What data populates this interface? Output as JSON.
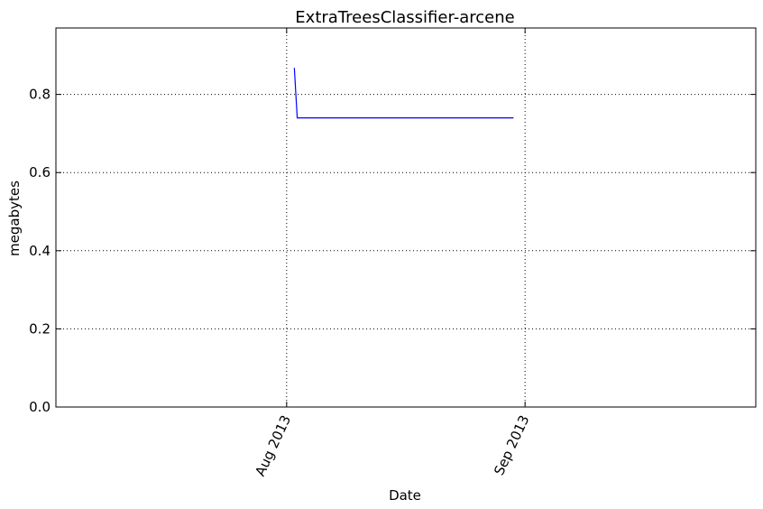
{
  "chart_data": {
    "type": "line",
    "title": "ExtraTreesClassifier-arcene",
    "xlabel": "Date",
    "ylabel": "megabytes",
    "x_axis_type": "date",
    "xlim": [
      "2013-07-02",
      "2013-10-01"
    ],
    "ylim": [
      0,
      0.97
    ],
    "x_ticks": [
      {
        "date": "2013-08-01",
        "label": "Aug 2013"
      },
      {
        "date": "2013-09-01",
        "label": "Sep 2013"
      }
    ],
    "y_ticks": [
      {
        "value": 0.0,
        "label": "0.0"
      },
      {
        "value": 0.2,
        "label": "0.2"
      },
      {
        "value": 0.4,
        "label": "0.4"
      },
      {
        "value": 0.6,
        "label": "0.6"
      },
      {
        "value": 0.8,
        "label": "0.8"
      }
    ],
    "grid": true,
    "series": [
      {
        "color": "#0000ff",
        "points": [
          {
            "x": "2013-08-02",
            "y": 0.868
          },
          {
            "x": "2013-08-02T09:00",
            "y": 0.74
          },
          {
            "x": "2013-08-30T12:00",
            "y": 0.74
          }
        ]
      }
    ]
  }
}
